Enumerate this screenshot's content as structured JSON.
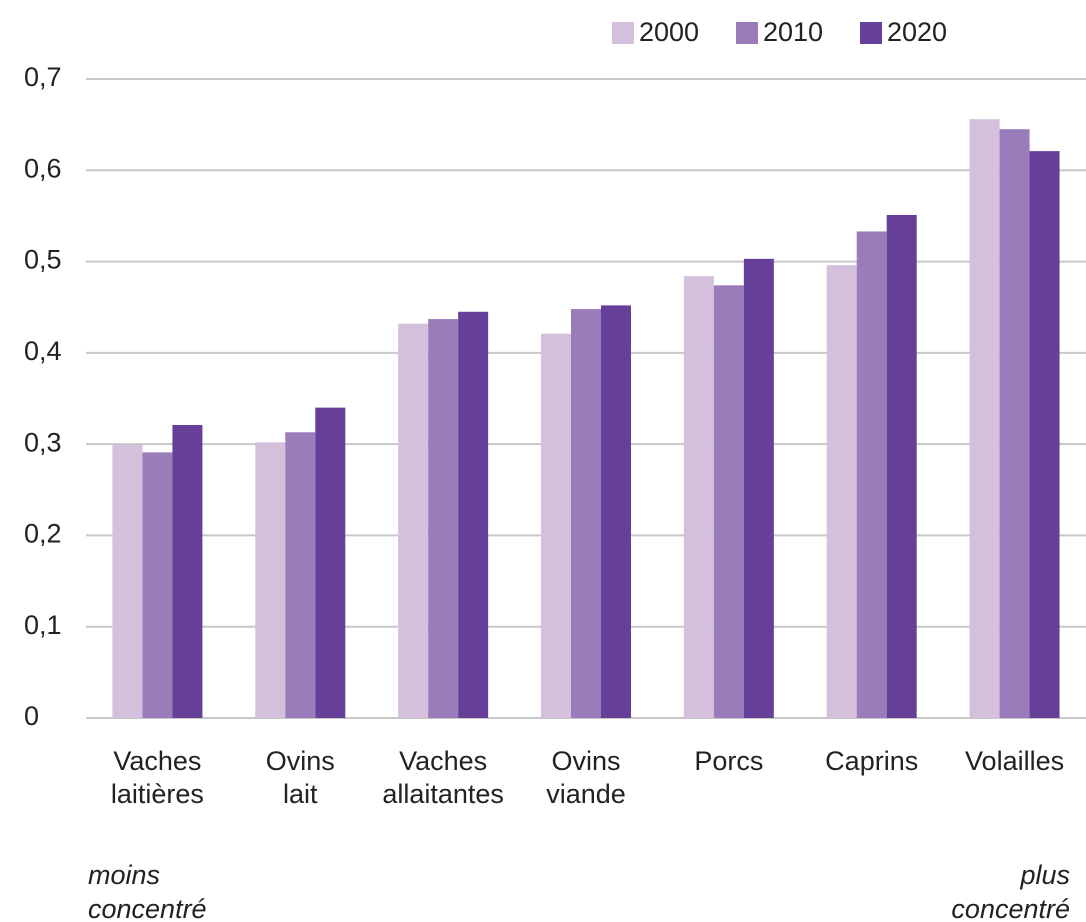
{
  "chart_data": {
    "type": "bar",
    "categories": [
      "Vaches\nlaitières",
      "Ovins\nlait",
      "Vaches\nallaitantes",
      "Ovins\nviande",
      "Porcs",
      "Caprins",
      "Volailles"
    ],
    "series": [
      {
        "name": "2000",
        "color": "#d4bfdc",
        "values": [
          0.299,
          0.302,
          0.432,
          0.421,
          0.484,
          0.496,
          0.656
        ]
      },
      {
        "name": "2010",
        "color": "#9b7cba",
        "values": [
          0.291,
          0.313,
          0.437,
          0.448,
          0.474,
          0.533,
          0.645
        ]
      },
      {
        "name": "2020",
        "color": "#663f99",
        "values": [
          0.321,
          0.34,
          0.445,
          0.452,
          0.503,
          0.551,
          0.621
        ]
      }
    ],
    "ylim": [
      0,
      0.7
    ],
    "yticks": [
      0,
      {
        "value": 0.1,
        "label": "0,1"
      },
      {
        "value": 0.2,
        "label": "0,2"
      },
      {
        "value": 0.3,
        "label": "0,3"
      },
      {
        "value": 0.4,
        "label": "0,4"
      },
      {
        "value": 0.5,
        "label": "0,5"
      },
      {
        "value": 0.6,
        "label": "0,6"
      },
      {
        "value": 0.7,
        "label": "0,7"
      }
    ],
    "grid": true,
    "legend": "top-right",
    "annotations": [
      "moins\nconcentré",
      "plus\nconcentré"
    ]
  }
}
